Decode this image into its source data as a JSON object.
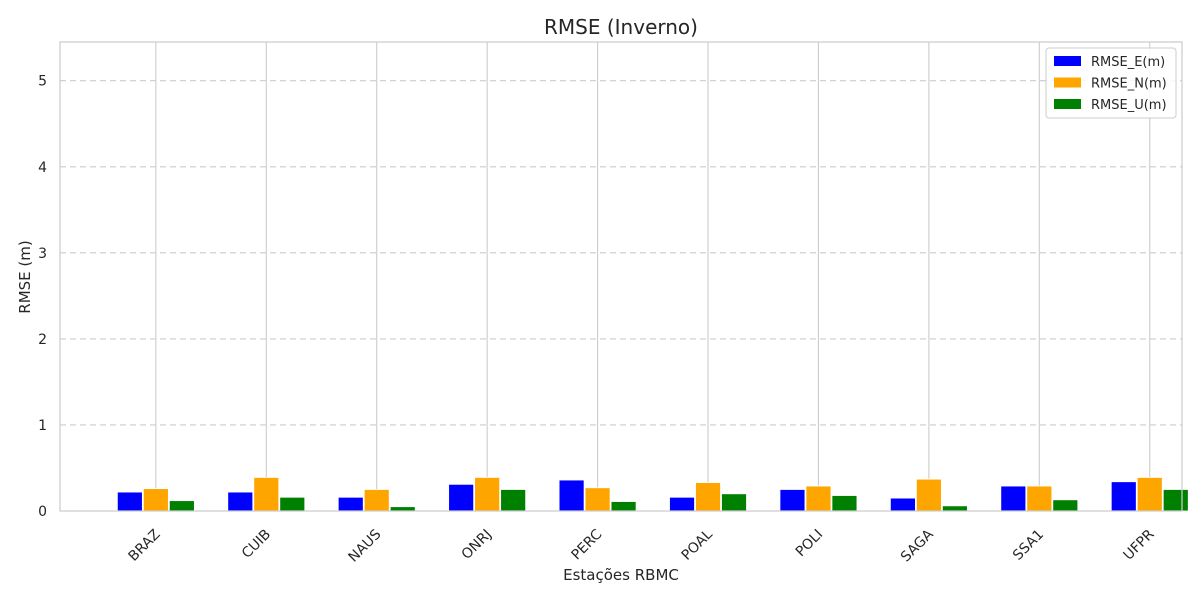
{
  "chart_data": {
    "type": "bar",
    "title": "RMSE (Inverno)",
    "xlabel": "Estações RBMC",
    "ylabel": "RMSE (m)",
    "ylim": [
      0,
      5.45
    ],
    "yticks": [
      "0",
      "1",
      "2",
      "3",
      "4",
      "5"
    ],
    "ytick_values": [
      0,
      1,
      2,
      3,
      4,
      5
    ],
    "grid": "dashed horizontal, solid vertical at categories",
    "legend_position": "top-right",
    "categories": [
      "BRAZ",
      "CUIB",
      "NAUS",
      "ONRJ",
      "PERC",
      "POAL",
      "POLI",
      "SAGA",
      "SSA1",
      "UFPR"
    ],
    "series": [
      {
        "name": "RMSE_E(m)",
        "color": "#0000ff",
        "values": [
          0.22,
          0.22,
          0.16,
          0.31,
          0.36,
          0.16,
          0.25,
          0.15,
          0.29,
          0.34
        ]
      },
      {
        "name": "RMSE_N(m)",
        "color": "#ffa500",
        "values": [
          0.26,
          0.39,
          0.25,
          0.39,
          0.27,
          0.33,
          0.29,
          0.37,
          0.29,
          0.39
        ]
      },
      {
        "name": "RMSE_U(m)",
        "color": "#008000",
        "values": [
          0.12,
          0.16,
          0.05,
          0.25,
          0.11,
          0.2,
          0.18,
          0.06,
          0.13,
          0.25
        ]
      }
    ]
  }
}
